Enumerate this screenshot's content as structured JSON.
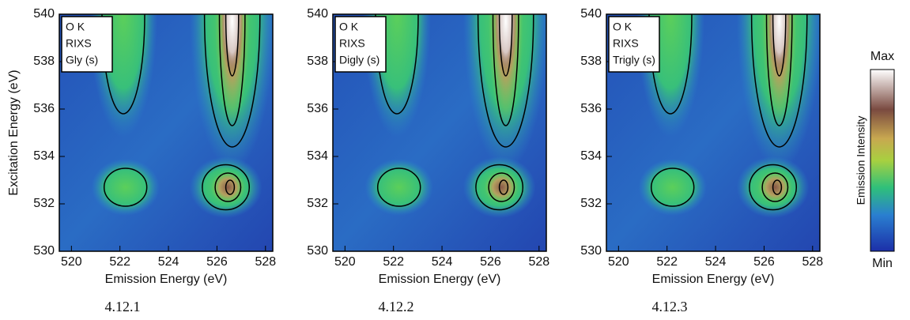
{
  "chart_data": [
    {
      "type": "heatmap",
      "legend_text": [
        "O K",
        "RIXS",
        "Gly (s)"
      ],
      "caption": "4.12.1",
      "xlabel": "Emission Energy (eV)",
      "ylabel": "Excitation Energy (eV)",
      "xlim": [
        519.5,
        528.3
      ],
      "xticks": [
        520,
        522,
        524,
        526,
        528
      ],
      "ylim": [
        530,
        540
      ],
      "yticks": [
        530,
        532,
        534,
        536,
        538,
        540
      ]
    },
    {
      "type": "heatmap",
      "legend_text": [
        "O K",
        "RIXS",
        "Digly (s)"
      ],
      "caption": "4.12.2",
      "xlabel": "Emission Energy (eV)",
      "xlim": [
        519.5,
        528.3
      ],
      "xticks": [
        520,
        522,
        524,
        526,
        528
      ],
      "ylim": [
        530,
        540
      ],
      "yticks": [
        530,
        532,
        534,
        536,
        538,
        540
      ]
    },
    {
      "type": "heatmap",
      "legend_text": [
        "O K",
        "RIXS",
        "Trigly (s)"
      ],
      "caption": "4.12.3",
      "xlabel": "Emission Energy (eV)",
      "xlim": [
        519.5,
        528.3
      ],
      "xticks": [
        520,
        522,
        524,
        526,
        528
      ],
      "ylim": [
        530,
        540
      ],
      "yticks": [
        530,
        532,
        534,
        536,
        538,
        540
      ]
    }
  ],
  "colorbar": {
    "label": "Emission Intensity",
    "max_label": "Max",
    "min_label": "Min"
  }
}
